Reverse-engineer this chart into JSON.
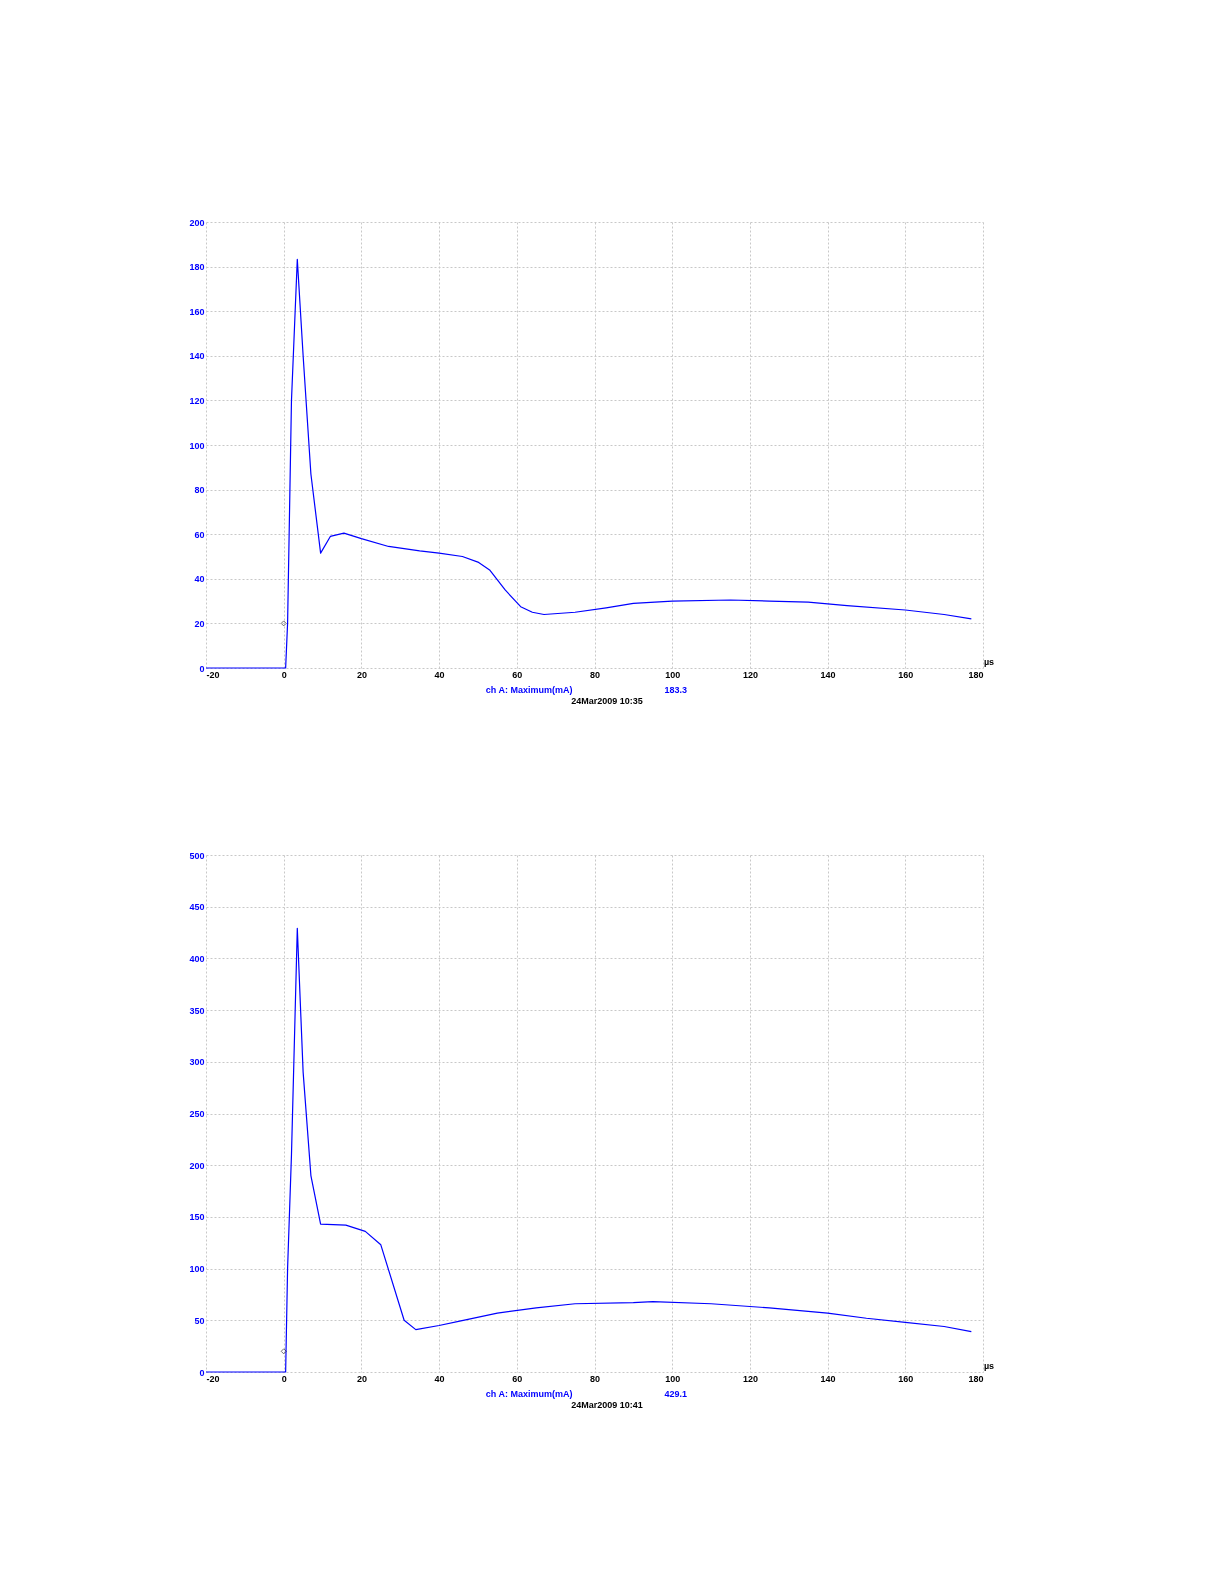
{
  "chart_data": [
    {
      "type": "line",
      "xlabel": "µs",
      "xlim": [
        -20,
        180
      ],
      "xticks": [
        -20,
        0,
        20,
        40,
        60,
        80,
        100,
        120,
        140,
        160,
        180
      ],
      "ylim": [
        0,
        200
      ],
      "yticks": [
        0,
        20,
        40,
        60,
        80,
        100,
        120,
        140,
        160,
        180,
        200
      ],
      "grid": true,
      "marker": "none",
      "line_style": "solid",
      "annotations": [
        "ch A: Maximum(mA)",
        "183.3",
        "24Mar2009  10:35"
      ],
      "series": [
        {
          "color": "#0000ff",
          "x": [
            -20,
            0.5,
            1,
            2,
            3.5,
            5,
            7,
            9.5,
            12,
            15.5,
            20,
            27,
            35,
            40,
            46,
            50,
            53,
            57,
            61,
            64,
            67,
            75,
            83,
            90,
            100,
            115,
            125,
            135,
            145,
            160,
            170,
            177
          ],
          "values": [
            0,
            0,
            20,
            120,
            183.3,
            140,
            87,
            51.5,
            59,
            60.5,
            58,
            54.5,
            52.5,
            51.5,
            50,
            47.5,
            44,
            35,
            27.5,
            25,
            24,
            25,
            27,
            29,
            30,
            30.5,
            30,
            29.5,
            28,
            26,
            24,
            22
          ]
        },
        {
          "type": "scatter",
          "marker": "diamond",
          "color": "#000000",
          "x": [
            0
          ],
          "values": [
            20
          ]
        }
      ]
    },
    {
      "type": "line",
      "xlabel": "µs",
      "xlim": [
        -20,
        180
      ],
      "xticks": [
        -20,
        0,
        20,
        40,
        60,
        80,
        100,
        120,
        140,
        160,
        180
      ],
      "ylim": [
        0,
        500
      ],
      "yticks": [
        0,
        50,
        100,
        150,
        200,
        250,
        300,
        350,
        400,
        450,
        500
      ],
      "grid": true,
      "marker": "none",
      "line_style": "solid",
      "annotations": [
        "ch A: Maximum(mA)",
        "429.1",
        "24Mar2009  10:41"
      ],
      "series": [
        {
          "color": "#0000ff",
          "x": [
            -20,
            0.5,
            1,
            2,
            3.5,
            5,
            7,
            9.5,
            16,
            21,
            25,
            31,
            34,
            40,
            45,
            55,
            65,
            75,
            90,
            95,
            110,
            125,
            140,
            150,
            160,
            170,
            177
          ],
          "values": [
            0,
            0,
            100,
            210,
            429.1,
            290,
            190,
            143,
            142,
            136,
            123,
            50,
            41,
            45,
            49,
            57,
            62,
            66,
            67,
            68,
            66,
            62,
            57,
            52,
            48,
            44,
            39
          ]
        },
        {
          "type": "scatter",
          "marker": "diamond",
          "color": "#000000",
          "x": [
            0
          ],
          "values": [
            20
          ]
        }
      ]
    }
  ]
}
